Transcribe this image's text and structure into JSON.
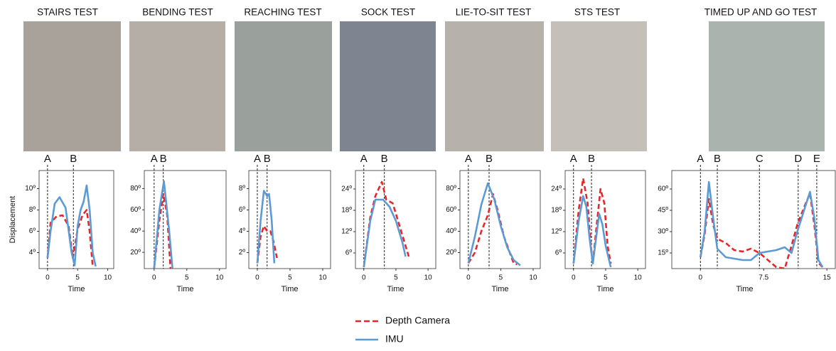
{
  "legend": {
    "position": "bottom",
    "entries": [
      {
        "name": "Depth Camera",
        "color": "#e8262a",
        "dash": true
      },
      {
        "name": "IMU",
        "color": "#5b9bd5",
        "dash": false
      }
    ]
  },
  "chart_data": [
    {
      "type": "line",
      "title": "STAIRS TEST",
      "xlabel": "Time",
      "ylabel": "Displacement",
      "xlim": [
        -1.4,
        11
      ],
      "ylim": [
        2.5,
        11.7
      ],
      "xticks": [
        0,
        5,
        10
      ],
      "yticks": [
        {
          "value": 4,
          "label": "4º"
        },
        {
          "value": 6,
          "label": "6º"
        },
        {
          "value": 8,
          "label": "8º"
        },
        {
          "value": 10,
          "label": "10º"
        }
      ],
      "phases": [
        {
          "label": "A",
          "x": 0
        },
        {
          "label": "B",
          "x": 4.3
        }
      ],
      "series": [
        {
          "x": [
            0,
            0.5,
            1.5,
            2.5,
            3.5,
            4.2,
            5,
            5.8,
            6.5,
            7,
            7.5
          ],
          "values": [
            3.5,
            6.8,
            7.4,
            7.5,
            6.5,
            3.5,
            6.2,
            7.5,
            8,
            6,
            2.7
          ]
        },
        {
          "x": [
            0,
            0.5,
            1.2,
            2,
            3,
            4,
            4.5,
            5,
            5.5,
            6,
            6.5,
            7,
            7.5,
            8
          ],
          "values": [
            3.5,
            6,
            8.6,
            9.2,
            8.2,
            4,
            2.8,
            6.5,
            8,
            8.8,
            10.3,
            8,
            4,
            2.7
          ]
        }
      ]
    },
    {
      "type": "line",
      "title": "BENDING TEST",
      "xlabel": "Time",
      "xlim": [
        -1.5,
        11
      ],
      "ylim": [
        4.7,
        97
      ],
      "xticks": [
        0,
        5,
        10
      ],
      "yticks": [
        {
          "value": 20,
          "label": "20º"
        },
        {
          "value": 40,
          "label": "40º"
        },
        {
          "value": 60,
          "label": "60º"
        },
        {
          "value": 80,
          "label": "80º"
        }
      ],
      "phases": [
        {
          "label": "A",
          "x": 0
        },
        {
          "label": "B",
          "x": 1.4
        }
      ],
      "series": [
        {
          "x": [
            0,
            0.8,
            1.4,
            2,
            2.5
          ],
          "values": [
            5,
            50,
            75,
            55,
            5
          ]
        },
        {
          "x": [
            0,
            0.8,
            1.5,
            2.3,
            2.8
          ],
          "values": [
            5,
            60,
            87,
            40,
            5
          ]
        }
      ]
    },
    {
      "type": "line",
      "title": "REACHING TEST",
      "xlabel": "Time",
      "xlim": [
        -1.3,
        11.2
      ],
      "ylim": [
        0.5,
        9.7
      ],
      "xticks": [
        0,
        5,
        10
      ],
      "yticks": [
        {
          "value": 2,
          "label": "2º"
        },
        {
          "value": 4,
          "label": "4º"
        },
        {
          "value": 6,
          "label": "6º"
        },
        {
          "value": 8,
          "label": "8º"
        }
      ],
      "phases": [
        {
          "label": "A",
          "x": 0
        },
        {
          "label": "B",
          "x": 1.5
        }
      ],
      "series": [
        {
          "x": [
            0,
            0.5,
            1,
            1.5,
            2,
            2.5,
            3
          ],
          "values": [
            1,
            3.5,
            4.5,
            4,
            4,
            3,
            1.5
          ]
        },
        {
          "x": [
            0,
            0.5,
            1,
            1.5,
            1.8,
            2.2,
            2.6
          ],
          "values": [
            1,
            5,
            7.8,
            7.3,
            7.5,
            5,
            1
          ]
        }
      ]
    },
    {
      "type": "line",
      "title": "SOCK TEST",
      "xlabel": "Time",
      "xlim": [
        -1.3,
        11.2
      ],
      "ylim": [
        1.6,
        29.2
      ],
      "xticks": [
        0,
        5,
        10
      ],
      "yticks": [
        {
          "value": 6,
          "label": "6º"
        },
        {
          "value": 12,
          "label": "12º"
        },
        {
          "value": 18,
          "label": "18º"
        },
        {
          "value": 24,
          "label": "24º"
        }
      ],
      "phases": [
        {
          "label": "A",
          "x": 0
        },
        {
          "label": "B",
          "x": 3.2
        }
      ],
      "series": [
        {
          "x": [
            0,
            1,
            1.8,
            2.8,
            3.5,
            4.5,
            5.5,
            6.5,
            7
          ],
          "values": [
            2,
            16,
            22,
            26,
            21,
            20,
            14,
            8,
            5
          ]
        },
        {
          "x": [
            0,
            1,
            1.8,
            3,
            4,
            5,
            6,
            6.5
          ],
          "values": [
            2,
            15,
            21,
            21,
            19,
            15,
            9,
            5
          ]
        }
      ]
    },
    {
      "type": "line",
      "title": "LIE-TO-SIT TEST",
      "xlabel": "Time",
      "xlim": [
        -1.3,
        11.1
      ],
      "ylim": [
        5,
        97
      ],
      "xticks": [
        0,
        5,
        10
      ],
      "yticks": [
        {
          "value": 20,
          "label": "20º"
        },
        {
          "value": 40,
          "label": "40º"
        },
        {
          "value": 60,
          "label": "60º"
        },
        {
          "value": 80,
          "label": "80º"
        }
      ],
      "phases": [
        {
          "label": "A",
          "x": 0
        },
        {
          "label": "B",
          "x": 3.2
        }
      ],
      "series": [
        {
          "x": [
            0,
            1,
            2,
            3,
            3.8,
            4.5,
            5.5,
            6.5,
            7,
            7.5
          ],
          "values": [
            10,
            20,
            40,
            55,
            75,
            60,
            35,
            18,
            10,
            9
          ]
        },
        {
          "x": [
            0,
            1,
            2,
            3,
            4,
            5,
            6,
            7,
            8
          ],
          "values": [
            10,
            35,
            65,
            85,
            70,
            45,
            25,
            13,
            8
          ]
        }
      ]
    },
    {
      "type": "line",
      "title": "STS TEST",
      "xlabel": "Time",
      "xlim": [
        -1.3,
        11.2
      ],
      "ylim": [
        1.6,
        29.2
      ],
      "xticks": [
        0,
        5,
        10
      ],
      "yticks": [
        {
          "value": 6,
          "label": "6º"
        },
        {
          "value": 12,
          "label": "12º"
        },
        {
          "value": 18,
          "label": "18º"
        },
        {
          "value": 24,
          "label": "24º"
        }
      ],
      "phases": [
        {
          "label": "A",
          "x": 0
        },
        {
          "label": "B",
          "x": 2.8
        }
      ],
      "series": [
        {
          "x": [
            0,
            0.8,
            1.5,
            2.2,
            2.7,
            3,
            3.5,
            4.2,
            4.8,
            5.3,
            5.8
          ],
          "values": [
            3,
            18,
            27,
            20,
            8,
            3,
            12,
            24,
            20,
            8,
            3
          ]
        },
        {
          "x": [
            0,
            0.8,
            1.5,
            2,
            2.5,
            3,
            3.5,
            4,
            4.5,
            5,
            5.8
          ],
          "values": [
            3,
            15,
            22,
            19,
            10,
            3,
            10,
            17,
            14,
            8,
            2
          ]
        }
      ]
    },
    {
      "type": "line",
      "title": "TIMED UP AND GO TEST",
      "xlabel": "Time",
      "xlim": [
        -3.4,
        16
      ],
      "ylim": [
        4,
        73
      ],
      "xticks": [
        0,
        7.5,
        15
      ],
      "yticks": [
        {
          "value": 15,
          "label": "15º"
        },
        {
          "value": 30,
          "label": "30º"
        },
        {
          "value": 45,
          "label": "45º"
        },
        {
          "value": 60,
          "label": "60º"
        }
      ],
      "phases": [
        {
          "label": "A",
          "x": 0
        },
        {
          "label": "B",
          "x": 2
        },
        {
          "label": "C",
          "x": 7
        },
        {
          "label": "D",
          "x": 11.6
        },
        {
          "label": "E",
          "x": 13.8
        }
      ],
      "series": [
        {
          "x": [
            0,
            0.5,
            1,
            1.5,
            2,
            3,
            4,
            5,
            6,
            7,
            8,
            9,
            10,
            10.8,
            11.5,
            12.5,
            13,
            13.5,
            14,
            14.5
          ],
          "values": [
            12,
            28,
            53,
            35,
            25,
            22,
            17,
            16,
            18,
            15,
            10,
            5,
            4,
            20,
            35,
            50,
            57,
            35,
            8,
            5
          ]
        },
        {
          "x": [
            0,
            0.5,
            1,
            1.5,
            2,
            3,
            4,
            5,
            6,
            7,
            8,
            9,
            10,
            10.8,
            11.5,
            12.3,
            13,
            13.5,
            14,
            14.5
          ],
          "values": [
            12,
            30,
            65,
            40,
            18,
            12,
            11,
            10,
            10,
            15,
            16,
            17,
            19,
            15,
            30,
            45,
            58,
            40,
            10,
            5
          ]
        }
      ]
    }
  ]
}
